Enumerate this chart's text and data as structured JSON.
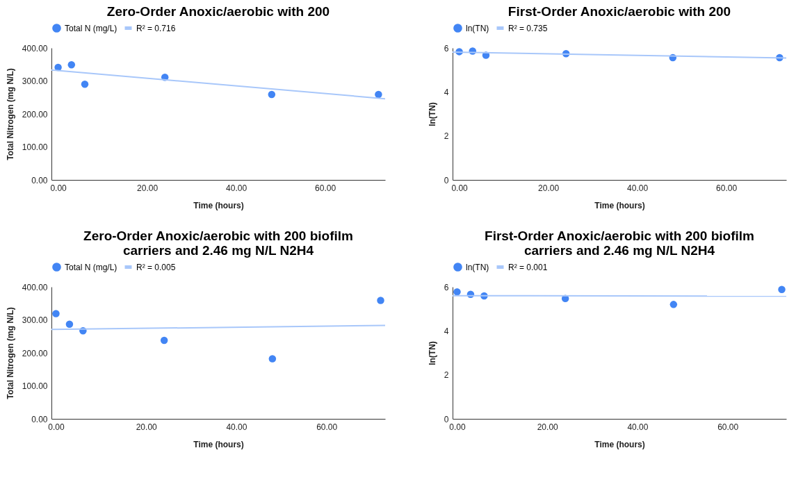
{
  "chart_data": [
    {
      "type": "scatter",
      "title": "Zero-Order Anoxic/aerobic with 200",
      "xlabel": "Time (hours)",
      "ylabel": "Total Nitrogen (mg N/L)",
      "x": [
        0,
        3,
        6,
        24,
        48,
        72
      ],
      "series": [
        {
          "name": "Total N (mg/L)",
          "color": "#4285f4",
          "values": [
            341,
            349,
            290,
            311,
            259,
            259
          ]
        },
        {
          "name": "R² = 0.716",
          "type": "line",
          "marker": "none",
          "color": "#a8c7fa",
          "x": [
            -1.5,
            73.5
          ],
          "values": [
            333,
            246
          ]
        }
      ],
      "xlim": [
        -1.5,
        73.5
      ],
      "xticks": [
        {
          "value": 0,
          "label": "0.00"
        },
        {
          "value": 20,
          "label": "20.00"
        },
        {
          "value": 40,
          "label": "40.00"
        },
        {
          "value": 60,
          "label": "60.00"
        }
      ],
      "ylim": [
        0,
        400
      ],
      "yticks": [
        {
          "value": 0,
          "label": "0.00"
        },
        {
          "value": 100,
          "label": "100.00"
        },
        {
          "value": 200,
          "label": "200.00"
        },
        {
          "value": 300,
          "label": "300.00"
        },
        {
          "value": 400,
          "label": "400.00"
        }
      ],
      "grid": false,
      "legend": "top",
      "marker": "circle"
    },
    {
      "type": "scatter",
      "title": "First-Order Anoxic/aerobic with 200",
      "xlabel": "Time (hours)",
      "ylabel": "ln(TN)",
      "x": [
        0,
        3,
        6,
        24,
        48,
        72
      ],
      "series": [
        {
          "name": "ln(TN)",
          "color": "#4285f4",
          "values": [
            5.83,
            5.86,
            5.67,
            5.74,
            5.56,
            5.56
          ]
        },
        {
          "name": "R² = 0.735",
          "type": "line",
          "marker": "none",
          "color": "#a8c7fa",
          "x": [
            -1.5,
            73.5
          ],
          "values": [
            5.81,
            5.54
          ]
        }
      ],
      "xlim": [
        -1.5,
        73.5
      ],
      "xticks": [
        {
          "value": 0,
          "label": "0.00"
        },
        {
          "value": 20,
          "label": "20.00"
        },
        {
          "value": 40,
          "label": "40.00"
        },
        {
          "value": 60,
          "label": "60.00"
        }
      ],
      "ylim": [
        0,
        6
      ],
      "yticks": [
        0,
        2,
        4,
        6
      ],
      "grid": false,
      "legend": "top",
      "marker": "circle"
    },
    {
      "type": "scatter",
      "title": "Zero-Order Anoxic/aerobic with 200 biofilm carriers and 2.46 mg N/L N2H4",
      "xlabel": "Time (hours)",
      "ylabel": "Total Nitrogen (mg N/L)",
      "x": [
        0,
        3,
        6,
        24,
        48,
        72
      ],
      "series": [
        {
          "name": "Total N (mg/L)",
          "color": "#4285f4",
          "values": [
            319,
            287,
            267,
            238,
            182,
            359
          ]
        },
        {
          "name": "R² = 0.005",
          "type": "line",
          "marker": "none",
          "color": "#a8c7fa",
          "x": [
            -1,
            73
          ],
          "values": [
            271,
            283
          ]
        }
      ],
      "xlim": [
        -1,
        73
      ],
      "xticks": [
        {
          "value": 0,
          "label": "0.00"
        },
        {
          "value": 20,
          "label": "20.00"
        },
        {
          "value": 40,
          "label": "40.00"
        },
        {
          "value": 60,
          "label": "60.00"
        }
      ],
      "ylim": [
        0,
        400
      ],
      "yticks": [
        {
          "value": 0,
          "label": "0.00"
        },
        {
          "value": 100,
          "label": "100.00"
        },
        {
          "value": 200,
          "label": "200.00"
        },
        {
          "value": 300,
          "label": "300.00"
        },
        {
          "value": 400,
          "label": "400.00"
        }
      ],
      "grid": false,
      "legend": "top",
      "marker": "circle"
    },
    {
      "type": "scatter",
      "title": "First-Order Anoxic/aerobic with 200 biofilm carriers and 2.46 mg N/L N2H4",
      "xlabel": "Time (hours)",
      "ylabel": "ln(TN)",
      "x": [
        0,
        3,
        6,
        24,
        48,
        72
      ],
      "series": [
        {
          "name": "ln(TN)",
          "color": "#4285f4",
          "values": [
            5.77,
            5.66,
            5.59,
            5.47,
            5.2,
            5.88
          ]
        },
        {
          "name": "R² = 0.001",
          "type": "line",
          "marker": "none",
          "color": "#a8c7fa",
          "x": [
            -1,
            73
          ],
          "values": [
            5.6,
            5.58
          ]
        }
      ],
      "xlim": [
        -1,
        73
      ],
      "xticks": [
        {
          "value": 0,
          "label": "0.00"
        },
        {
          "value": 20,
          "label": "20.00"
        },
        {
          "value": 40,
          "label": "40.00"
        },
        {
          "value": 60,
          "label": "60.00"
        }
      ],
      "ylim": [
        0,
        6
      ],
      "yticks": [
        0,
        2,
        4,
        6
      ],
      "grid": false,
      "legend": "top",
      "marker": "circle"
    }
  ]
}
